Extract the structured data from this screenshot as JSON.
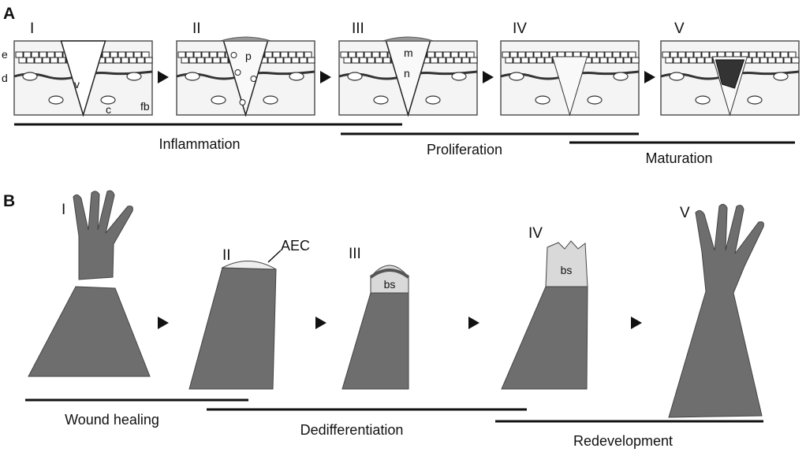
{
  "panel_a": {
    "letter": "A",
    "stages": [
      "I",
      "II",
      "III",
      "IV",
      "V"
    ],
    "layer_labels": {
      "epidermis": "e",
      "dermis": "d",
      "vessel": "v",
      "collagen": "c",
      "fibroblast": "fb",
      "platelet": "p",
      "macrophage": "m",
      "neutrophil": "n"
    },
    "phases": [
      "Inflammation",
      "Proliferation",
      "Maturation"
    ]
  },
  "panel_b": {
    "letter": "B",
    "stages": [
      "I",
      "II",
      "III",
      "IV",
      "V"
    ],
    "labels": {
      "aec": "AEC",
      "blastema_3": "bs",
      "blastema_4": "bs"
    },
    "phases": [
      "Wound healing",
      "Dedifferentiation",
      "Redevelopment"
    ]
  },
  "colors": {
    "arm": "#6e6e6e",
    "blastema": "#d9d9d9",
    "line": "#111111"
  }
}
